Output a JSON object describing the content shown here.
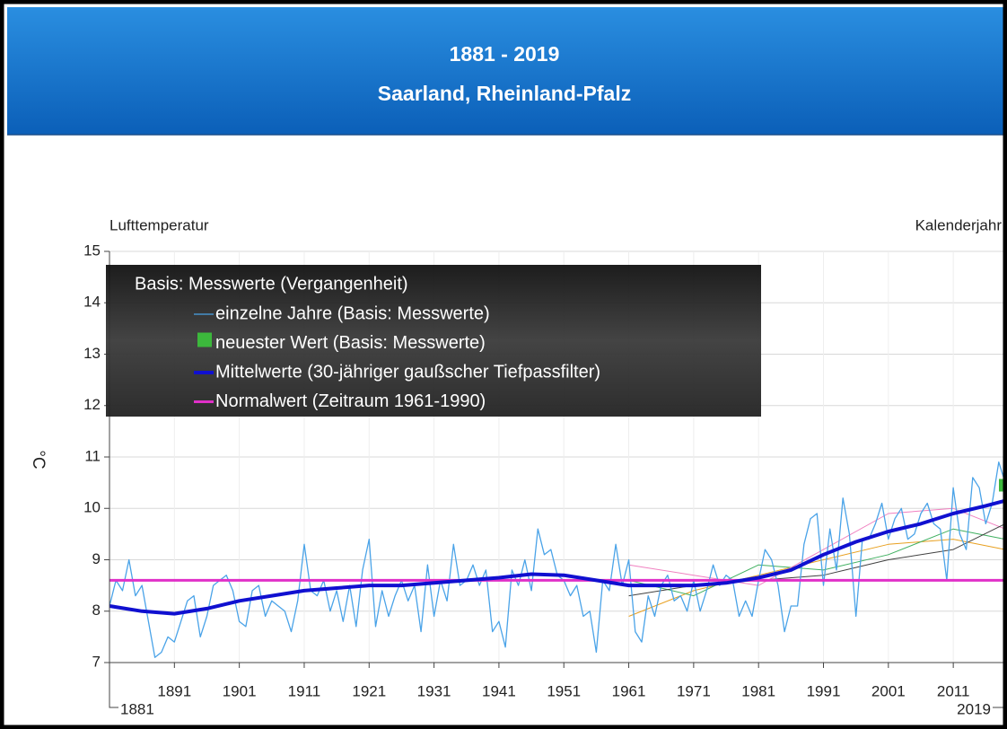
{
  "chart_data": {
    "type": "line",
    "title": "1881 - 2019",
    "subtitle": "Saarland, Rheinland-Pfalz",
    "y_axis_title": "Lufttemperatur",
    "x_axis_title": "Kalenderjahr",
    "y_unit": "°C",
    "legend_title": "Basis: Messwerte (Vergangenheit)",
    "xlim": [
      1881,
      2019
    ],
    "ylim": [
      7,
      15
    ],
    "xticks": [
      1891,
      1901,
      1911,
      1921,
      1931,
      1941,
      1951,
      1961,
      1971,
      1981,
      1991,
      2001,
      2011
    ],
    "yticks": [
      7,
      8,
      9,
      10,
      11,
      12,
      13,
      14,
      15
    ],
    "grid": true,
    "series": [
      {
        "name": "einzelne Jahre (Basis: Messwerte)",
        "color": "#4aa3e8",
        "width": 1.3,
        "x": [
          1881,
          1882,
          1883,
          1884,
          1885,
          1886,
          1887,
          1888,
          1889,
          1890,
          1891,
          1892,
          1893,
          1894,
          1895,
          1896,
          1897,
          1898,
          1899,
          1900,
          1901,
          1902,
          1903,
          1904,
          1905,
          1906,
          1907,
          1908,
          1909,
          1910,
          1911,
          1912,
          1913,
          1914,
          1915,
          1916,
          1917,
          1918,
          1919,
          1920,
          1921,
          1922,
          1923,
          1924,
          1925,
          1926,
          1927,
          1928,
          1929,
          1930,
          1931,
          1932,
          1933,
          1934,
          1935,
          1936,
          1937,
          1938,
          1939,
          1940,
          1941,
          1942,
          1943,
          1944,
          1945,
          1946,
          1947,
          1948,
          1949,
          1950,
          1951,
          1952,
          1953,
          1954,
          1955,
          1956,
          1957,
          1958,
          1959,
          1960,
          1961,
          1962,
          1963,
          1964,
          1965,
          1966,
          1967,
          1968,
          1969,
          1970,
          1971,
          1972,
          1973,
          1974,
          1975,
          1976,
          1977,
          1978,
          1979,
          1980,
          1981,
          1982,
          1983,
          1984,
          1985,
          1986,
          1987,
          1988,
          1989,
          1990,
          1991,
          1992,
          1993,
          1994,
          1995,
          1996,
          1997,
          1998,
          1999,
          2000,
          2001,
          2002,
          2003,
          2004,
          2005,
          2006,
          2007,
          2008,
          2009,
          2010,
          2011,
          2012,
          2013,
          2014,
          2015,
          2016,
          2017,
          2018,
          2019
        ],
        "values": [
          8.1,
          8.6,
          8.4,
          9.0,
          8.3,
          8.5,
          7.8,
          7.1,
          7.2,
          7.5,
          7.4,
          7.8,
          8.2,
          8.3,
          7.5,
          7.9,
          8.5,
          8.6,
          8.7,
          8.4,
          7.8,
          7.7,
          8.4,
          8.5,
          7.9,
          8.2,
          8.1,
          8.0,
          7.6,
          8.2,
          9.3,
          8.4,
          8.3,
          8.6,
          8.0,
          8.4,
          7.8,
          8.5,
          7.7,
          8.8,
          9.4,
          7.7,
          8.4,
          7.9,
          8.3,
          8.6,
          8.2,
          8.5,
          7.6,
          8.9,
          7.9,
          8.6,
          8.2,
          9.3,
          8.5,
          8.6,
          8.9,
          8.5,
          8.8,
          7.6,
          7.8,
          7.3,
          8.8,
          8.5,
          9.0,
          8.4,
          9.6,
          9.1,
          9.2,
          8.7,
          8.6,
          8.3,
          8.5,
          7.9,
          8.0,
          7.2,
          8.6,
          8.4,
          9.3,
          8.5,
          9.0,
          7.6,
          7.4,
          8.3,
          7.9,
          8.5,
          8.7,
          8.2,
          8.3,
          8.0,
          8.6,
          8.0,
          8.4,
          8.9,
          8.5,
          8.7,
          8.6,
          7.9,
          8.2,
          7.9,
          8.6,
          9.2,
          9.0,
          8.5,
          7.6,
          8.1,
          8.1,
          9.3,
          9.8,
          9.9,
          8.5,
          9.6,
          8.8,
          10.2,
          9.5,
          7.9,
          9.4,
          9.4,
          9.7,
          10.1,
          9.4,
          9.8,
          10.0,
          9.4,
          9.5,
          9.9,
          10.1,
          9.7,
          9.6,
          8.6,
          10.4,
          9.5,
          9.2,
          10.6,
          10.4,
          9.7,
          10.1,
          10.9,
          10.5
        ]
      },
      {
        "name": "neuester Wert (Basis: Messwerte)",
        "color": "#3cb83c",
        "marker": "square",
        "x": [
          2019
        ],
        "values": [
          10.45
        ]
      },
      {
        "name": "Mittelwerte (30-jähriger gaußscher Tiefpassfilter)",
        "color": "#1010d0",
        "width": 4,
        "x": [
          1881,
          1886,
          1891,
          1896,
          1901,
          1906,
          1911,
          1916,
          1921,
          1926,
          1931,
          1936,
          1941,
          1946,
          1951,
          1956,
          1961,
          1966,
          1971,
          1976,
          1981,
          1986,
          1991,
          1996,
          2001,
          2006,
          2011,
          2016,
          2019
        ],
        "values": [
          8.1,
          8.0,
          7.95,
          8.05,
          8.2,
          8.3,
          8.4,
          8.45,
          8.5,
          8.5,
          8.55,
          8.6,
          8.65,
          8.72,
          8.7,
          8.6,
          8.5,
          8.5,
          8.5,
          8.55,
          8.65,
          8.8,
          9.1,
          9.35,
          9.55,
          9.7,
          9.9,
          10.05,
          10.15
        ]
      },
      {
        "name": "Normalwert (Zeitraum 1961-1990)",
        "color": "#e030c8",
        "width": 3,
        "x": [
          1881,
          2019
        ],
        "values": [
          8.6,
          8.6
        ]
      },
      {
        "color": "#e8a020",
        "width": 1,
        "x": [
          1961,
          1971,
          1981,
          1991,
          2001,
          2011,
          2019
        ],
        "values": [
          7.9,
          8.4,
          8.7,
          9.0,
          9.3,
          9.4,
          9.2
        ]
      },
      {
        "color": "#40b060",
        "width": 1,
        "x": [
          1961,
          1971,
          1981,
          1991,
          2001,
          2011,
          2019
        ],
        "values": [
          8.6,
          8.3,
          8.9,
          8.8,
          9.1,
          9.6,
          9.4
        ]
      },
      {
        "color": "#f080c0",
        "width": 1,
        "x": [
          1961,
          1971,
          1981,
          1991,
          2001,
          2011,
          2019
        ],
        "values": [
          8.9,
          8.7,
          8.5,
          9.2,
          9.9,
          10.0,
          9.6
        ]
      },
      {
        "color": "#404040",
        "width": 1,
        "x": [
          1961,
          1971,
          1981,
          1991,
          2001,
          2011,
          2019
        ],
        "values": [
          8.3,
          8.5,
          8.6,
          8.7,
          9.0,
          9.2,
          9.7
        ]
      }
    ]
  }
}
